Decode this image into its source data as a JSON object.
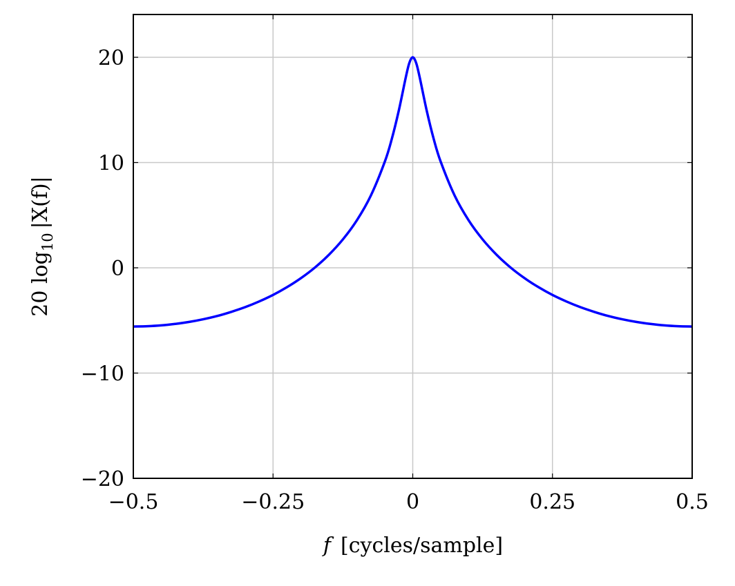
{
  "chart_data": {
    "type": "line",
    "title": "",
    "xlabel_var": "f",
    "xlabel_unit": "[cycles/sample]",
    "ylabel_main": "20 log",
    "ylabel_sub": "10",
    "ylabel_rest": "|X(f)|",
    "xlim": [
      -0.5,
      0.5
    ],
    "ylim": [
      -20,
      24
    ],
    "grid": true,
    "xticks": [
      -0.5,
      -0.25,
      0,
      0.25,
      0.5
    ],
    "xtick_labels": [
      "−0.5",
      "−0.25",
      "0",
      "0.25",
      "0.5"
    ],
    "yticks": [
      -20,
      -10,
      0,
      10,
      20
    ],
    "ytick_labels": [
      "−20",
      "−10",
      "0",
      "10",
      "20"
    ],
    "series": [
      {
        "color": "#0000ff",
        "x": [
          -0.5,
          -0.475,
          -0.45,
          -0.425,
          -0.4,
          -0.375,
          -0.35,
          -0.325,
          -0.3,
          -0.275,
          -0.25,
          -0.225,
          -0.2,
          -0.175,
          -0.15,
          -0.125,
          -0.1,
          -0.075,
          -0.05,
          -0.0375,
          -0.025,
          -0.0125,
          -0.00625,
          0,
          0.00625,
          0.0125,
          0.025,
          0.0375,
          0.05,
          0.075,
          0.1,
          0.125,
          0.15,
          0.175,
          0.2,
          0.225,
          0.25,
          0.275,
          0.3,
          0.325,
          0.35,
          0.375,
          0.4,
          0.425,
          0.45,
          0.475,
          0.5
        ],
        "y": [
          -5.58,
          -5.55,
          -5.47,
          -5.33,
          -5.14,
          -4.89,
          -4.58,
          -4.19,
          -3.74,
          -3.2,
          -2.58,
          -1.84,
          -0.98,
          0.03,
          1.24,
          2.7,
          4.51,
          6.86,
          10.08,
          12.24,
          14.93,
          18.08,
          19.44,
          20.0,
          19.44,
          18.08,
          14.93,
          12.24,
          10.08,
          6.86,
          4.51,
          2.7,
          1.24,
          0.03,
          -0.98,
          -1.84,
          -2.58,
          -3.2,
          -3.74,
          -4.19,
          -4.58,
          -4.89,
          -5.14,
          -5.33,
          -5.47,
          -5.55,
          -5.58
        ]
      }
    ]
  }
}
